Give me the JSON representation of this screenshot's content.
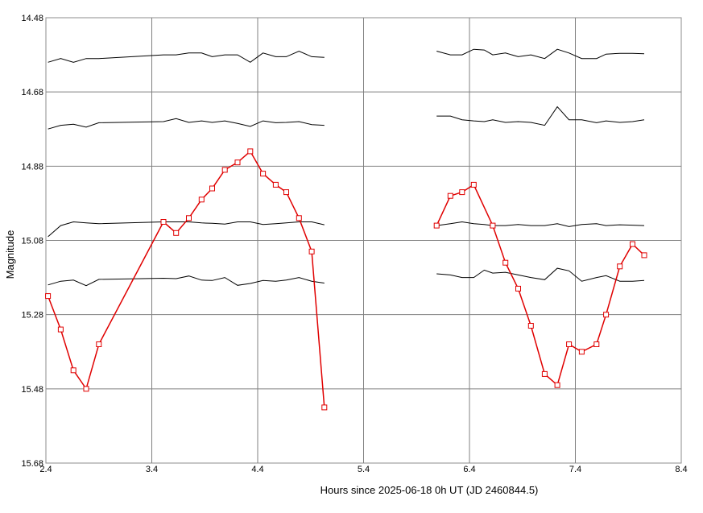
{
  "chart_data": {
    "type": "line",
    "title": "",
    "xlabel": "Hours since 2025-06-18 0h UT (JD 2460844.5)",
    "ylabel": "Magnitude",
    "xlim": [
      2.4,
      8.4
    ],
    "ylim": [
      15.68,
      14.48
    ],
    "y_inverted": true,
    "grid": true,
    "x_ticks": [
      "2.4",
      "3.4",
      "4.4",
      "5.4",
      "6.4",
      "7.4",
      "8.4"
    ],
    "y_ticks": [
      "14.48",
      "14.68",
      "14.88",
      "15.08",
      "15.28",
      "15.48",
      "15.68"
    ],
    "colors": {
      "target": "#e00000",
      "comparison": "#000000",
      "grid": "#808080"
    },
    "target": {
      "segments": [
        {
          "x": [
            2.42,
            2.54,
            2.66,
            2.78,
            2.9,
            3.51,
            3.63,
            3.75,
            3.87,
            3.97,
            4.09,
            4.21,
            4.33,
            4.45,
            4.57,
            4.67,
            4.79,
            4.91,
            5.03
          ],
          "y": [
            15.23,
            15.32,
            15.43,
            15.48,
            15.36,
            15.03,
            15.06,
            15.02,
            14.97,
            14.94,
            14.89,
            14.87,
            14.84,
            14.9,
            14.93,
            14.95,
            15.02,
            15.11,
            15.53
          ]
        },
        {
          "x": [
            6.09,
            6.22,
            6.33,
            6.44,
            6.62,
            6.74,
            6.86,
            6.98,
            7.11,
            7.23,
            7.34,
            7.46,
            7.6,
            7.69,
            7.82,
            7.94,
            8.05
          ],
          "y": [
            15.04,
            14.96,
            14.95,
            14.93,
            15.04,
            15.14,
            15.21,
            15.31,
            15.44,
            15.47,
            15.36,
            15.38,
            15.36,
            15.28,
            15.15,
            15.09,
            15.12
          ]
        }
      ]
    },
    "comparison": [
      {
        "segments": [
          {
            "x": [
              2.42,
              2.54,
              2.66,
              2.78,
              2.9,
              3.51,
              3.63,
              3.75,
              3.87,
              3.97,
              4.09,
              4.21,
              4.33,
              4.45,
              4.57,
              4.67,
              4.79,
              4.91,
              5.03
            ],
            "y": [
              14.6,
              14.59,
              14.6,
              14.59,
              14.59,
              14.58,
              14.58,
              14.575,
              14.575,
              14.585,
              14.58,
              14.58,
              14.6,
              14.575,
              14.585,
              14.585,
              14.57,
              14.585,
              14.587
            ]
          },
          {
            "x": [
              6.09,
              6.22,
              6.33,
              6.44,
              6.54,
              6.62,
              6.74,
              6.86,
              6.98,
              7.11,
              7.23,
              7.34,
              7.46,
              7.6,
              7.69,
              7.82,
              7.94,
              8.05
            ],
            "y": [
              14.57,
              14.58,
              14.58,
              14.565,
              14.567,
              14.58,
              14.575,
              14.585,
              14.58,
              14.59,
              14.565,
              14.575,
              14.59,
              14.59,
              14.578,
              14.576,
              14.576,
              14.577
            ]
          }
        ]
      },
      {
        "segments": [
          {
            "x": [
              2.42,
              2.54,
              2.66,
              2.78,
              2.9,
              3.51,
              3.63,
              3.75,
              3.87,
              3.97,
              4.09,
              4.21,
              4.33,
              4.45,
              4.57,
              4.67,
              4.79,
              4.91,
              5.03
            ],
            "y": [
              14.78,
              14.77,
              14.767,
              14.775,
              14.763,
              14.76,
              14.752,
              14.762,
              14.758,
              14.762,
              14.758,
              14.765,
              14.773,
              14.758,
              14.763,
              14.762,
              14.76,
              14.768,
              14.77
            ]
          },
          {
            "x": [
              6.09,
              6.22,
              6.33,
              6.44,
              6.54,
              6.62,
              6.74,
              6.86,
              6.98,
              7.11,
              7.23,
              7.34,
              7.46,
              7.6,
              7.69,
              7.82,
              7.94,
              8.05
            ],
            "y": [
              14.745,
              14.745,
              14.755,
              14.758,
              14.76,
              14.755,
              14.762,
              14.76,
              14.762,
              14.77,
              14.72,
              14.755,
              14.755,
              14.763,
              14.758,
              14.762,
              14.76,
              14.755
            ]
          }
        ]
      },
      {
        "segments": [
          {
            "x": [
              2.42,
              2.54,
              2.66,
              2.78,
              2.9,
              3.51,
              3.63,
              3.75,
              3.87,
              3.97,
              4.09,
              4.21,
              4.33,
              4.45,
              4.57,
              4.67,
              4.79,
              4.91,
              5.03
            ],
            "y": [
              15.07,
              15.04,
              15.03,
              15.033,
              15.035,
              15.03,
              15.03,
              15.03,
              15.033,
              15.034,
              15.036,
              15.03,
              15.03,
              15.037,
              15.035,
              15.033,
              15.03,
              15.03,
              15.038
            ]
          },
          {
            "x": [
              6.09,
              6.22,
              6.33,
              6.44,
              6.54,
              6.62,
              6.74,
              6.86,
              6.98,
              7.11,
              7.23,
              7.34,
              7.46,
              7.6,
              7.69,
              7.82,
              7.94,
              8.05
            ],
            "y": [
              15.04,
              15.035,
              15.03,
              15.035,
              15.037,
              15.04,
              15.04,
              15.037,
              15.04,
              15.04,
              15.035,
              15.043,
              15.037,
              15.035,
              15.04,
              15.038,
              15.039,
              15.04
            ]
          }
        ]
      },
      {
        "segments": [
          {
            "x": [
              2.42,
              2.54,
              2.66,
              2.78,
              2.9,
              3.51,
              3.63,
              3.75,
              3.87,
              3.97,
              4.09,
              4.21,
              4.33,
              4.45,
              4.57,
              4.67,
              4.79,
              4.91,
              5.03
            ],
            "y": [
              15.2,
              15.19,
              15.187,
              15.202,
              15.185,
              15.182,
              15.183,
              15.176,
              15.187,
              15.188,
              15.18,
              15.201,
              15.196,
              15.188,
              15.19,
              15.187,
              15.18,
              15.19,
              15.195
            ]
          },
          {
            "x": [
              6.09,
              6.22,
              6.33,
              6.44,
              6.54,
              6.62,
              6.74,
              6.86,
              6.98,
              7.11,
              7.23,
              7.34,
              7.46,
              7.6,
              7.69,
              7.82,
              7.94,
              8.05
            ],
            "y": [
              15.17,
              15.173,
              15.18,
              15.18,
              15.16,
              15.168,
              15.166,
              15.173,
              15.18,
              15.186,
              15.155,
              15.162,
              15.19,
              15.18,
              15.175,
              15.19,
              15.19,
              15.188
            ]
          }
        ]
      }
    ]
  }
}
